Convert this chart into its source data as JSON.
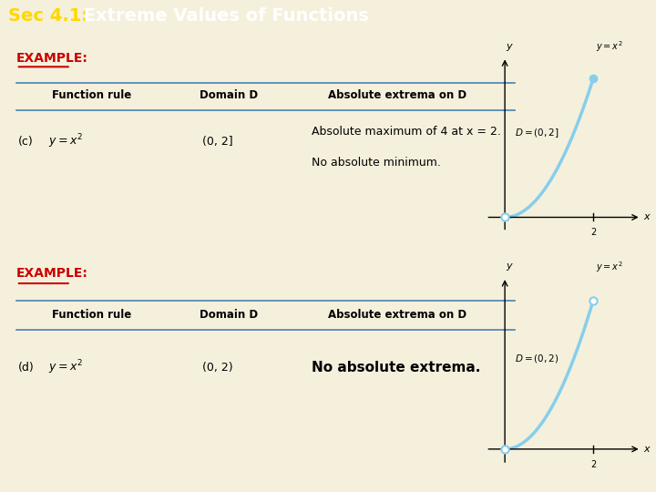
{
  "title_bg": "#8B0000",
  "title_fg_sec": "#FFD700",
  "title_fg_main": "#FFFFFF",
  "outer_bg": "#F5F0DC",
  "box_bg": "#FFFFFF",
  "box_border": "#8B0000",
  "example_color": "#CC0000",
  "table_line_color": "#4682B4",
  "curve_color": "#87CEEB",
  "panel1": {
    "label": "EXAMPLE:",
    "col_headers": [
      "Function rule",
      "Domain D",
      "Absolute extrema on D"
    ],
    "row_label": "(c)",
    "domain": "(0, 2]",
    "extrema_line1": "Absolute maximum of 4 at x = 2.",
    "extrema_line2": "No absolute minimum.",
    "domain_label": "D = (0, 2]"
  },
  "panel2": {
    "label": "EXAMPLE:",
    "col_headers": [
      "Function rule",
      "Domain D",
      "Absolute extrema on D"
    ],
    "row_label": "(d)",
    "domain": "(0, 2)",
    "extrema_line1": "No absolute extrema.",
    "domain_label": "D = (0, 2)"
  }
}
